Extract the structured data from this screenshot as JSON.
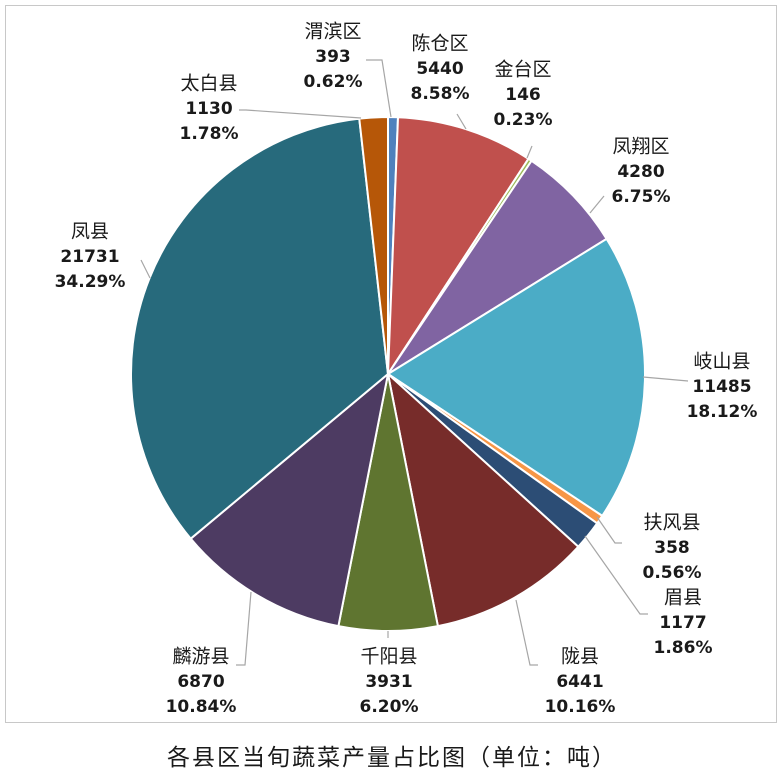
{
  "chart_data": {
    "type": "pie",
    "title": "各县区当旬蔬菜产量占比图（单位：吨）",
    "unit": "吨",
    "slices": [
      {
        "name": "渭滨区",
        "value": 393,
        "percent": "0.62%",
        "color": "#4f81bd"
      },
      {
        "name": "陈仓区",
        "value": 5440,
        "percent": "8.58%",
        "color": "#c0504d"
      },
      {
        "name": "金台区",
        "value": 146,
        "percent": "0.23%",
        "color": "#9bbb59"
      },
      {
        "name": "凤翔区",
        "value": 4280,
        "percent": "6.75%",
        "color": "#8064a2"
      },
      {
        "name": "岐山县",
        "value": 11485,
        "percent": "18.12%",
        "color": "#4bacc6"
      },
      {
        "name": "扶风县",
        "value": 358,
        "percent": "0.56%",
        "color": "#f79646"
      },
      {
        "name": "眉县",
        "value": 1177,
        "percent": "1.86%",
        "color": "#2c4d75"
      },
      {
        "name": "陇县",
        "value": 6441,
        "percent": "10.16%",
        "color": "#772c2a"
      },
      {
        "name": "千阳县",
        "value": 3931,
        "percent": "6.20%",
        "color": "#5f7530"
      },
      {
        "name": "麟游县",
        "value": 6870,
        "percent": "10.84%",
        "color": "#4d3b62"
      },
      {
        "name": "凤县",
        "value": 21731,
        "percent": "34.29%",
        "color": "#276a7c"
      },
      {
        "name": "太白县",
        "value": 1130,
        "percent": "1.78%",
        "color": "#b65708"
      }
    ],
    "legend": "none",
    "data_labels": "outside with leader lines"
  }
}
